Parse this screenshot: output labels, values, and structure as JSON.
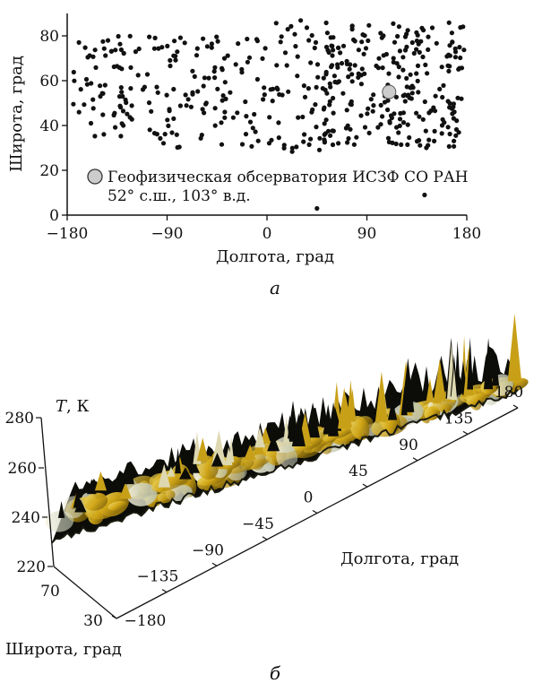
{
  "chart_data": [
    {
      "panel": "а",
      "type": "scatter",
      "xlabel": "Долгота, град",
      "ylabel": "Широта, град",
      "xlim": [
        -180,
        180
      ],
      "ylim": [
        0,
        90
      ],
      "xticks": [
        "−180",
        "−90",
        "0",
        "90",
        "180"
      ],
      "xtick_values": [
        -180,
        -90,
        0,
        90,
        180
      ],
      "yticks": [
        "0",
        "20",
        "40",
        "60",
        "80"
      ],
      "ytick_values": [
        0,
        20,
        40,
        60,
        80
      ],
      "series_color": "#111111",
      "marker_color": "#cccccc",
      "points_generated": {
        "clusters": [
          {
            "x_range": [
              -175,
              -110
            ],
            "y_range": [
              35,
              80
            ],
            "count": 70
          },
          {
            "x_range": [
              -110,
              -20
            ],
            "y_range": [
              30,
              80
            ],
            "count": 90
          },
          {
            "x_range": [
              -20,
              60
            ],
            "y_range": [
              28,
              88
            ],
            "count": 90
          },
          {
            "x_range": [
              50,
              178
            ],
            "y_range": [
              30,
              86
            ],
            "count": 250
          }
        ],
        "extra": [
          [
            45,
            3
          ],
          [
            142,
            9
          ]
        ]
      },
      "marker": {
        "x": 110,
        "y": 55
      },
      "legend": {
        "line1": "Геофизическая обсерватория ИСЗФ СО РАН",
        "line2": "52° с.ш., 103° в.д."
      }
    },
    {
      "panel": "б",
      "type": "surface",
      "zlabel_italic": "T",
      "zlabel_rest": ", К",
      "xlabel": "Долгота, град",
      "ylabel": "Широта, град",
      "zticks": [
        "280",
        "260",
        "240",
        "220"
      ],
      "ztick_values": [
        280,
        260,
        240,
        220
      ],
      "xticks": [
        "−180",
        "−135",
        "−90",
        "−45",
        "0",
        "45",
        "90",
        "135",
        "180"
      ],
      "xtick_values": [
        -180,
        -135,
        -90,
        -45,
        0,
        45,
        90,
        135,
        180
      ],
      "yticks": [
        "70",
        "30"
      ],
      "ytick_values": [
        70,
        30
      ],
      "colors": {
        "dark": "#0c0c08",
        "yellow": "#d8b21a",
        "light": "#e8e2b8"
      }
    }
  ],
  "captions": {
    "a": "а",
    "b": "б"
  }
}
